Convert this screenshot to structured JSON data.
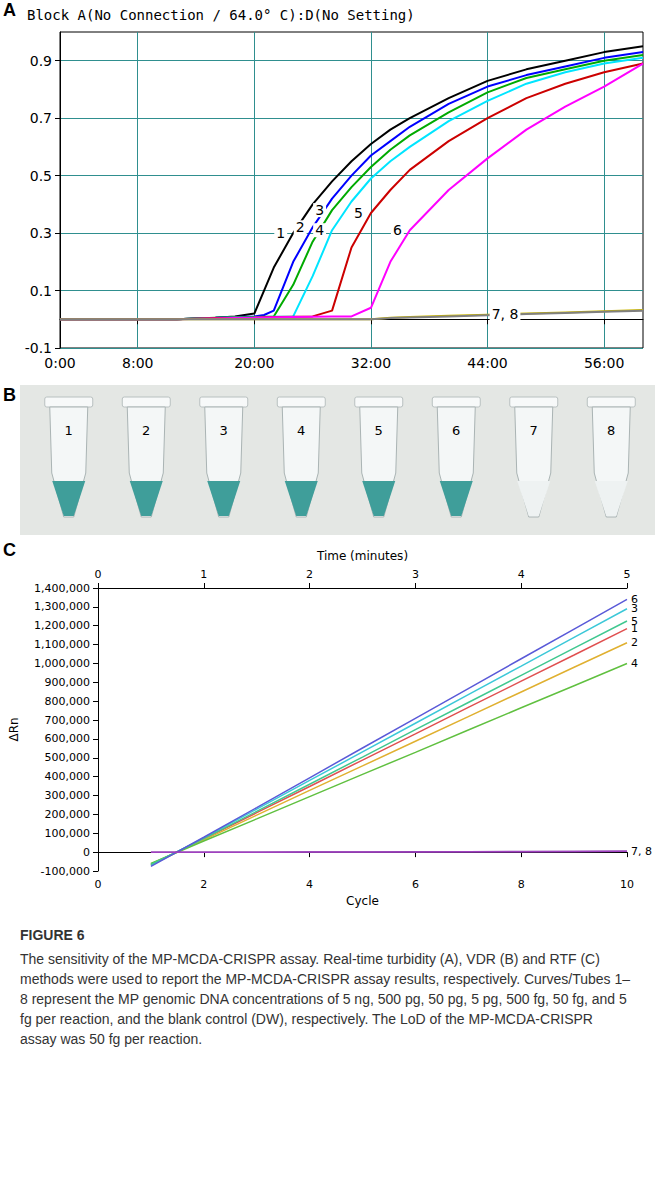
{
  "chart_data": [
    {
      "type": "line",
      "letter": "A",
      "title": "Block A(No Connection / 64.0° C):D(No Setting)",
      "x": [
        0,
        4,
        8,
        12,
        16,
        18,
        20,
        21,
        22,
        24,
        26,
        28,
        30,
        32,
        34,
        36,
        40,
        44,
        48,
        52,
        56,
        60
      ],
      "series": [
        {
          "name": "1",
          "color": "#000000",
          "values": [
            0,
            0,
            0,
            0,
            0.005,
            0.01,
            0.02,
            0.1,
            0.18,
            0.3,
            0.4,
            0.48,
            0.55,
            0.61,
            0.66,
            0.7,
            0.77,
            0.83,
            0.87,
            0.9,
            0.93,
            0.95
          ]
        },
        {
          "name": "2",
          "color": "#0000ff",
          "values": [
            0,
            0,
            0,
            0,
            0.005,
            0.008,
            0.01,
            0.015,
            0.03,
            0.2,
            0.32,
            0.42,
            0.5,
            0.57,
            0.62,
            0.67,
            0.75,
            0.81,
            0.85,
            0.88,
            0.91,
            0.93
          ]
        },
        {
          "name": "3",
          "color": "#00aa00",
          "values": [
            0,
            0,
            0,
            0,
            0.005,
            0.007,
            0.008,
            0.009,
            0.01,
            0.12,
            0.27,
            0.38,
            0.46,
            0.53,
            0.59,
            0.64,
            0.72,
            0.79,
            0.84,
            0.87,
            0.9,
            0.92
          ]
        },
        {
          "name": "4",
          "color": "#00e5ff",
          "values": [
            0,
            0,
            0,
            0,
            0.004,
            0.006,
            0.007,
            0.008,
            0.009,
            0.01,
            0.15,
            0.31,
            0.41,
            0.49,
            0.55,
            0.6,
            0.69,
            0.76,
            0.82,
            0.86,
            0.89,
            0.91
          ]
        },
        {
          "name": "5",
          "color": "#cc0000",
          "values": [
            0,
            0,
            0,
            0,
            0.004,
            0.005,
            0.006,
            0.007,
            0.008,
            0.009,
            0.01,
            0.03,
            0.25,
            0.37,
            0.45,
            0.52,
            0.62,
            0.7,
            0.77,
            0.82,
            0.86,
            0.89
          ]
        },
        {
          "name": "6",
          "color": "#ff00ff",
          "values": [
            0,
            0,
            0,
            0,
            0.003,
            0.004,
            0.005,
            0.006,
            0.007,
            0.008,
            0.009,
            0.01,
            0.01,
            0.04,
            0.2,
            0.31,
            0.45,
            0.56,
            0.66,
            0.74,
            0.81,
            0.89
          ]
        },
        {
          "name": "7, 8",
          "color": "#c8b400",
          "values": [
            0,
            0,
            0,
            0,
            0,
            0,
            0,
            0,
            0,
            0,
            0,
            0,
            0,
            0,
            0.005,
            0.008,
            0.012,
            0.016,
            0.02,
            0.024,
            0.028,
            0.032
          ]
        },
        {
          "color": "#808080",
          "values": [
            0,
            0,
            0,
            0,
            0,
            0,
            0,
            0,
            0,
            0,
            0,
            0,
            0,
            0,
            0.004,
            0.006,
            0.01,
            0.014,
            0.018,
            0.022,
            0.026,
            0.03
          ]
        }
      ],
      "xlim": [
        0,
        60
      ],
      "xticks": [
        {
          "value": 0,
          "label": "0:00"
        },
        {
          "value": 8,
          "label": "8:00"
        },
        {
          "value": 20,
          "label": "20:00"
        },
        {
          "value": 32,
          "label": "32:00"
        },
        {
          "value": 44,
          "label": "44:00"
        },
        {
          "value": 56,
          "label": "56:00"
        }
      ],
      "ylim": [
        -0.1,
        1.0
      ],
      "yticks": [
        -0.1,
        0.1,
        0.3,
        0.5,
        0.7,
        0.9
      ],
      "grid": true
    },
    {
      "type": "line",
      "letter": "C",
      "x_label": "Cycle",
      "x2_label": "Time (minutes)",
      "y_label": "ΔRn",
      "x": [
        1,
        2,
        3,
        4,
        5,
        6,
        7,
        8,
        9,
        10
      ],
      "series": [
        {
          "name": "1",
          "color": "#e05050",
          "values": [
            -68000,
            70000,
            209000,
            348000,
            488000,
            627000,
            767000,
            906000,
            1045000,
            1185000
          ]
        },
        {
          "name": "2",
          "color": "#e0b030",
          "values": [
            -62000,
            65000,
            196000,
            327000,
            457000,
            588000,
            718000,
            849000,
            980000,
            1110000
          ]
        },
        {
          "name": "3",
          "color": "#3cc8d8",
          "values": [
            -70000,
            76000,
            228000,
            380000,
            531000,
            683000,
            835000,
            986000,
            1138000,
            1290000
          ]
        },
        {
          "name": "4",
          "color": "#60c040",
          "values": [
            -60000,
            59000,
            176000,
            294000,
            412000,
            529000,
            647000,
            765000,
            882000,
            1000000
          ]
        },
        {
          "name": "5",
          "color": "#40c890",
          "values": [
            -65000,
            72000,
            216000,
            360000,
            504000,
            649000,
            793000,
            937000,
            1081000,
            1225000
          ]
        },
        {
          "name": "6",
          "color": "#5a5ad8",
          "values": [
            -75000,
            79000,
            236000,
            394000,
            552000,
            709000,
            867000,
            1025000,
            1182000,
            1340000
          ]
        },
        {
          "name": "7, 8",
          "color": "#8040a0",
          "values": [
            0,
            0,
            0,
            500,
            1000,
            1500,
            2000,
            3000,
            4000,
            5000
          ]
        },
        {
          "color": "#a040c0",
          "values": [
            0,
            0,
            0,
            400,
            800,
            1200,
            1800,
            2600,
            3600,
            4500
          ]
        }
      ],
      "xlim": [
        0,
        10
      ],
      "xticks": [
        0,
        2,
        4,
        6,
        8,
        10
      ],
      "x2lim": [
        0,
        5
      ],
      "x2ticks": [
        0,
        1,
        2,
        3,
        4,
        5
      ],
      "ylim": [
        -100000,
        1400000
      ],
      "yticks": [
        {
          "value": -100000,
          "label": "-100,000"
        },
        0,
        {
          "value": 100000,
          "label": "100,000"
        },
        {
          "value": 200000,
          "label": "200,000"
        },
        {
          "value": 300000,
          "label": "300,000"
        },
        {
          "value": 400000,
          "label": "400,000"
        },
        {
          "value": 500000,
          "label": "500,000"
        },
        {
          "value": 600000,
          "label": "600,000"
        },
        {
          "value": 700000,
          "label": "700,000"
        },
        {
          "value": 800000,
          "label": "800,000"
        },
        {
          "value": 900000,
          "label": "900,000"
        },
        {
          "value": 1000000,
          "label": "1,000,000"
        },
        {
          "value": 1100000,
          "label": "1,100,000"
        },
        {
          "value": 1200000,
          "label": "1,200,000"
        },
        {
          "value": 1300000,
          "label": "1,300,000"
        },
        {
          "value": 1400000,
          "label": "1,400,000"
        }
      ],
      "grid": false
    }
  ],
  "photo": {
    "letter": "B",
    "labels": [
      "1",
      "2",
      "3",
      "4",
      "5",
      "6",
      "7",
      "8"
    ],
    "colors": [
      "#3f9e9a",
      "#3f9e9a",
      "#3f9e9a",
      "#3f9e9a",
      "#3f9e9a",
      "#3f9e9a",
      "#eef2f2",
      "#eef2f2"
    ]
  },
  "caption": {
    "heading": "FIGURE 6",
    "text": "The sensitivity of the MP-MCDA-CRISPR assay. Real-time turbidity (A), VDR (B) and RTF (C) methods were used to report the MP-MCDA-CRISPR assay results, respectively. Curves/Tubes 1–8 represent the MP genomic DNA concentrations of 5 ng, 500 pg, 50 pg, 5 pg, 500 fg, 50 fg, and 5 fg per reaction, and the blank control (DW), respectively. The LoD of the MP-MCDA-CRISPR assay was 50 fg per reaction."
  }
}
